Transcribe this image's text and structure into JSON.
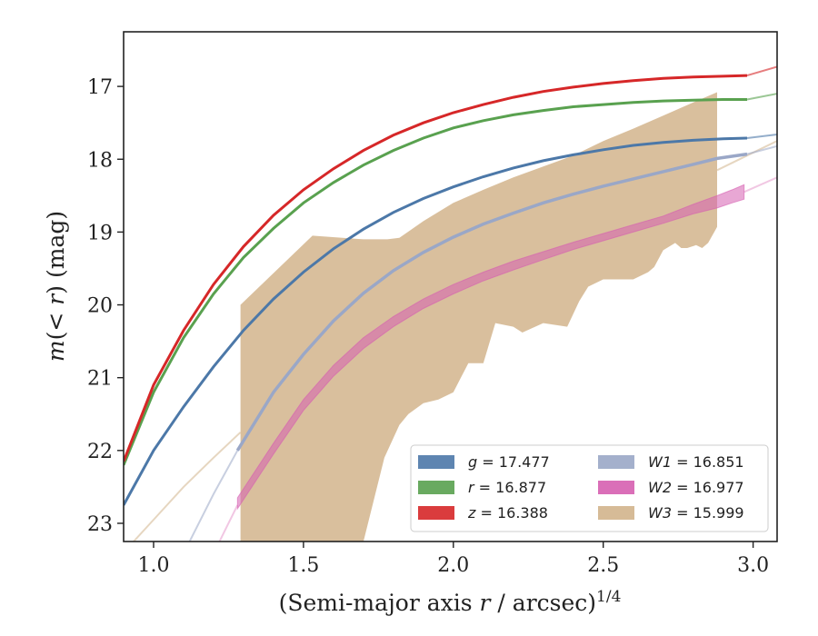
{
  "chart_data": {
    "type": "line",
    "xlabel": "(Semi-major axis r / arcsec)^(1/4)",
    "ylabel": "m(< r) (mag)",
    "xlim": [
      0.9,
      3.08
    ],
    "ylim": [
      23.25,
      16.25
    ],
    "y_inverted": true,
    "grid": false,
    "legend_placement": "lower-right",
    "x_ticks": [
      {
        "value": 1.0,
        "label": "1.0"
      },
      {
        "value": 1.5,
        "label": "1.5"
      },
      {
        "value": 2.0,
        "label": "2.0"
      },
      {
        "value": 2.5,
        "label": "2.5"
      },
      {
        "value": 3.0,
        "label": "3.0"
      }
    ],
    "y_ticks": [
      {
        "value": 17,
        "label": "17"
      },
      {
        "value": 18,
        "label": "18"
      },
      {
        "value": 19,
        "label": "19"
      },
      {
        "value": 20,
        "label": "20"
      },
      {
        "value": 21,
        "label": "21"
      },
      {
        "value": 22,
        "label": "22"
      },
      {
        "value": 23,
        "label": "23"
      }
    ],
    "series": [
      {
        "name": "g = 17.477",
        "band": "g",
        "mag": "17.477",
        "color": "#4c78a8",
        "kind": "curve",
        "x": [
          0.9,
          1.0,
          1.1,
          1.2,
          1.3,
          1.4,
          1.5,
          1.6,
          1.7,
          1.8,
          1.9,
          2.0,
          2.1,
          2.2,
          2.3,
          2.4,
          2.5,
          2.6,
          2.7,
          2.8,
          2.9,
          2.98
        ],
        "y": [
          22.75,
          22.0,
          21.4,
          20.85,
          20.35,
          19.92,
          19.55,
          19.23,
          18.96,
          18.73,
          18.54,
          18.38,
          18.24,
          18.12,
          18.02,
          17.94,
          17.87,
          17.81,
          17.77,
          17.74,
          17.72,
          17.71
        ],
        "ext_x": [
          2.98,
          3.08
        ],
        "ext_y": [
          17.71,
          17.66
        ]
      },
      {
        "name": "r = 16.877",
        "band": "r",
        "mag": "16.877",
        "color": "#59a14f",
        "kind": "curve",
        "x": [
          0.9,
          1.0,
          1.1,
          1.2,
          1.3,
          1.4,
          1.5,
          1.6,
          1.7,
          1.8,
          1.9,
          2.0,
          2.1,
          2.2,
          2.3,
          2.4,
          2.5,
          2.6,
          2.7,
          2.8,
          2.9,
          2.98
        ],
        "y": [
          22.2,
          21.2,
          20.45,
          19.85,
          19.35,
          18.95,
          18.6,
          18.32,
          18.08,
          17.88,
          17.71,
          17.57,
          17.47,
          17.39,
          17.33,
          17.28,
          17.25,
          17.22,
          17.2,
          17.19,
          17.18,
          17.18
        ],
        "ext_x": [
          2.98,
          3.08
        ],
        "ext_y": [
          17.18,
          17.1
        ]
      },
      {
        "name": "z = 16.388",
        "band": "z",
        "mag": "16.388",
        "color": "#d62728",
        "kind": "curve",
        "x": [
          0.9,
          1.0,
          1.1,
          1.2,
          1.3,
          1.4,
          1.5,
          1.6,
          1.7,
          1.8,
          1.9,
          2.0,
          2.1,
          2.2,
          2.3,
          2.4,
          2.5,
          2.6,
          2.7,
          2.8,
          2.9,
          2.98
        ],
        "y": [
          22.15,
          21.1,
          20.35,
          19.72,
          19.2,
          18.77,
          18.42,
          18.13,
          17.88,
          17.67,
          17.5,
          17.36,
          17.25,
          17.15,
          17.07,
          17.01,
          16.96,
          16.92,
          16.89,
          16.87,
          16.86,
          16.85
        ],
        "ext_x": [
          2.98,
          3.08
        ],
        "ext_y": [
          16.85,
          16.73
        ]
      },
      {
        "name": "W1 = 16.851",
        "band": "W1",
        "mag": "16.851",
        "color": "#9aa7c7",
        "kind": "curve",
        "x": [
          1.28,
          1.4,
          1.5,
          1.6,
          1.7,
          1.8,
          1.9,
          2.0,
          2.1,
          2.2,
          2.3,
          2.4,
          2.5,
          2.6,
          2.7,
          2.8,
          2.88,
          2.98
        ],
        "y": [
          22.0,
          21.2,
          20.68,
          20.22,
          19.84,
          19.53,
          19.28,
          19.07,
          18.89,
          18.74,
          18.6,
          18.48,
          18.37,
          18.27,
          18.17,
          18.07,
          17.99,
          17.93
        ],
        "ext_x": [
          1.12,
          1.2,
          1.28
        ],
        "ext_y": [
          23.25,
          22.6,
          22.0
        ],
        "ext_tail_x": [
          2.98,
          3.08
        ],
        "ext_tail_y": [
          17.93,
          17.82
        ]
      },
      {
        "name": "W2 = 16.977",
        "band": "W2",
        "mag": "16.977",
        "color": "#d65fb0",
        "kind": "band",
        "x": [
          1.28,
          1.4,
          1.5,
          1.6,
          1.7,
          1.8,
          1.9,
          2.0,
          2.1,
          2.2,
          2.3,
          2.4,
          2.5,
          2.6,
          2.7,
          2.8,
          2.88,
          2.93,
          2.97
        ],
        "y_low": [
          22.8,
          22.05,
          21.45,
          20.98,
          20.6,
          20.3,
          20.05,
          19.85,
          19.67,
          19.52,
          19.38,
          19.24,
          19.12,
          19.0,
          18.88,
          18.75,
          18.67,
          18.6,
          18.55
        ],
        "y_high": [
          22.65,
          21.9,
          21.3,
          20.83,
          20.45,
          20.16,
          19.92,
          19.72,
          19.55,
          19.4,
          19.27,
          19.14,
          19.02,
          18.9,
          18.78,
          18.62,
          18.5,
          18.42,
          18.35
        ],
        "ext_x": [
          1.22,
          1.28
        ],
        "ext_y": [
          23.25,
          22.75
        ],
        "ext_tail_x": [
          2.97,
          3.08
        ],
        "ext_tail_y": [
          18.45,
          18.25
        ]
      },
      {
        "name": "W3 = 15.999",
        "band": "W3",
        "mag": "15.999",
        "color": "#d2b48c",
        "kind": "band",
        "upper_x": [
          1.29,
          1.53,
          1.63,
          1.7,
          1.78,
          1.82,
          1.9,
          2.0,
          2.1,
          2.2,
          2.3,
          2.4,
          2.5,
          2.6,
          2.7,
          2.8,
          2.88
        ],
        "upper_y": [
          20.0,
          19.05,
          19.08,
          19.1,
          19.1,
          19.08,
          18.85,
          18.6,
          18.42,
          18.25,
          18.1,
          17.95,
          17.75,
          17.58,
          17.4,
          17.22,
          17.08
        ],
        "lower_x": [
          2.88,
          2.85,
          2.83,
          2.81,
          2.78,
          2.76,
          2.74,
          2.72,
          2.7,
          2.67,
          2.65,
          2.6,
          2.55,
          2.5,
          2.45,
          2.42,
          2.38,
          2.3,
          2.23,
          2.2,
          2.14,
          2.1,
          2.05,
          2.0,
          1.95,
          1.9,
          1.85,
          1.82,
          1.77,
          1.7
        ],
        "lower_y": [
          18.93,
          19.15,
          19.22,
          19.18,
          19.22,
          19.22,
          19.15,
          19.2,
          19.25,
          19.48,
          19.55,
          19.65,
          19.65,
          19.65,
          19.75,
          19.95,
          20.3,
          20.25,
          20.38,
          20.3,
          20.25,
          20.8,
          20.8,
          21.2,
          21.3,
          21.35,
          21.5,
          21.65,
          22.1,
          23.25
        ],
        "lower_tail_x": 1.29,
        "lower_tail_y": 23.25,
        "ext_x": [
          0.9,
          1.0,
          1.1,
          1.2,
          1.29
        ],
        "ext_y": [
          23.4,
          22.95,
          22.5,
          22.1,
          21.75
        ],
        "ext_tail_x": [
          2.88,
          2.98,
          3.08
        ],
        "ext_tail_y": [
          18.15,
          17.95,
          17.75
        ]
      }
    ]
  },
  "legend": {
    "items": [
      {
        "var": "g",
        "eq": "= 17.477",
        "color": "#4c78a8",
        "italic": true
      },
      {
        "var": "r",
        "eq": "= 16.877",
        "color": "#59a14f",
        "italic": true
      },
      {
        "var": "z",
        "eq": "= 16.388",
        "color": "#d62728",
        "italic": true
      },
      {
        "var": "W1",
        "eq": "= 16.851",
        "color": "#9aa7c7",
        "italic": true
      },
      {
        "var": "W2",
        "eq": "= 16.977",
        "color": "#d65fb0",
        "italic": true
      },
      {
        "var": "W3",
        "eq": "= 15.999",
        "color": "#d2b48c",
        "italic": true
      }
    ]
  }
}
